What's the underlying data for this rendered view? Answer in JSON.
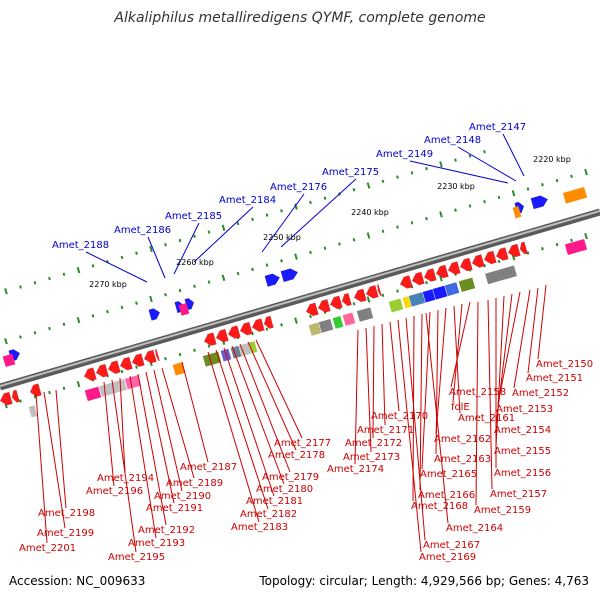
{
  "title": "Alkaliphilus metalliredigens QYMF, complete genome",
  "footer": {
    "accession": "Accession: NC_009633",
    "stats": "Topology: circular; Length: 4,929,566 bp; Genes: 4,763"
  },
  "colors": {
    "forward_label": "#0000cc",
    "reverse_label": "#cc0000",
    "backbone": "#888888",
    "tick": "#2b8a2b",
    "forward_gene": "#1a1aff",
    "reverse_gene": "#ff1a1a"
  },
  "ruler_labels": [
    "2220 kbp",
    "2230 kbp",
    "2240 kbp",
    "2250 kbp",
    "2260 kbp",
    "2270 kbp"
  ],
  "forward_labels": [
    "Amet_2147",
    "Amet_2148",
    "Amet_2149",
    "Amet_2175",
    "Amet_2176",
    "Amet_2184",
    "Amet_2185",
    "Amet_2186",
    "Amet_2188"
  ],
  "reverse_labels": [
    "Amet_2150",
    "Amet_2151",
    "Amet_2152",
    "Amet_2153",
    "Amet_2154",
    "Amet_2155",
    "Amet_2156",
    "Amet_2157",
    "Amet_2158",
    "folE",
    "Amet_2161",
    "Amet_2162",
    "Amet_2163",
    "Amet_2165",
    "Amet_2166",
    "Amet_2168",
    "Amet_2159",
    "Amet_2164",
    "Amet_2167",
    "Amet_2169",
    "Amet_2170",
    "Amet_2171",
    "Amet_2172",
    "Amet_2173",
    "Amet_2174",
    "Amet_2177",
    "Amet_2178",
    "Amet_2179",
    "Amet_2180",
    "Amet_2181",
    "Amet_2182",
    "Amet_2183",
    "Amet_2187",
    "Amet_2189",
    "Amet_2190",
    "Amet_2191",
    "Amet_2192",
    "Amet_2193",
    "Amet_2194",
    "Amet_2195",
    "Amet_2196",
    "Amet_2198",
    "Amet_2199",
    "Amet_2201"
  ]
}
